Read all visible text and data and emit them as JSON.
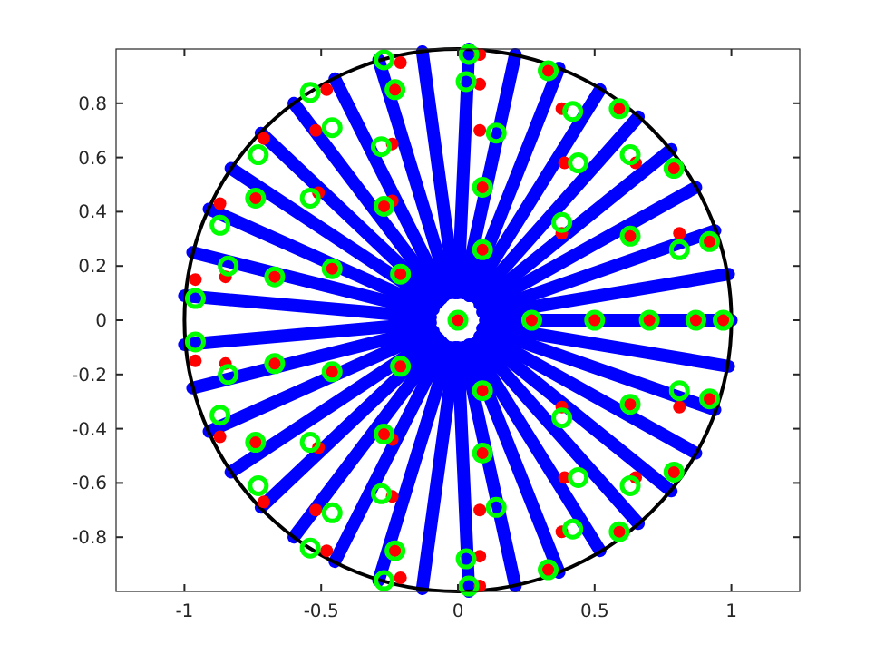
{
  "chart_data": {
    "type": "scatter",
    "xlim": [
      -1.25,
      1.25
    ],
    "ylim": [
      -1,
      1
    ],
    "xticks": [
      -1,
      -0.5,
      0,
      0.5,
      1
    ],
    "yticks": [
      -0.8,
      -0.6,
      -0.4,
      -0.2,
      0,
      0.2,
      0.4,
      0.6,
      0.8
    ],
    "grid": false,
    "series": [
      {
        "type": "line",
        "color": "#0000ff",
        "x": [
          0.1,
          1
        ],
        "values": [
          0,
          0
        ]
      },
      {
        "type": "line",
        "color": "#0000ff",
        "x": [
          0.1,
          0.99
        ],
        "values": [
          0.02,
          0.17
        ]
      },
      {
        "type": "line",
        "color": "#0000ff",
        "x": [
          0.09,
          0.94
        ],
        "values": [
          0.03,
          0.33
        ]
      },
      {
        "type": "line",
        "color": "#0000ff",
        "x": [
          0.09,
          0.87
        ],
        "values": [
          0.05,
          0.49
        ]
      },
      {
        "type": "line",
        "color": "#0000ff",
        "x": [
          0.08,
          0.78
        ],
        "values": [
          0.06,
          0.63
        ]
      },
      {
        "type": "line",
        "color": "#0000ff",
        "x": [
          0.07,
          0.66
        ],
        "values": [
          0.08,
          0.75
        ]
      },
      {
        "type": "line",
        "color": "#0000ff",
        "x": [
          0.05,
          0.52
        ],
        "values": [
          0.09,
          0.85
        ]
      },
      {
        "type": "line",
        "color": "#0000ff",
        "x": [
          0.04,
          0.37
        ],
        "values": [
          0.09,
          0.93
        ]
      },
      {
        "type": "line",
        "color": "#0000ff",
        "x": [
          0.02,
          0.21
        ],
        "values": [
          0.1,
          0.98
        ]
      },
      {
        "type": "line",
        "color": "#0000ff",
        "x": [
          0,
          0.04
        ],
        "values": [
          0.1,
          1
        ]
      },
      {
        "type": "line",
        "color": "#0000ff",
        "x": [
          -0.01,
          -0.13
        ],
        "values": [
          0.1,
          0.99
        ]
      },
      {
        "type": "line",
        "color": "#0000ff",
        "x": [
          -0.03,
          -0.29
        ],
        "values": [
          0.1,
          0.96
        ]
      },
      {
        "type": "line",
        "color": "#0000ff",
        "x": [
          -0.05,
          -0.45
        ],
        "values": [
          0.09,
          0.89
        ]
      },
      {
        "type": "line",
        "color": "#0000ff",
        "x": [
          -0.06,
          -0.6
        ],
        "values": [
          0.08,
          0.8
        ]
      },
      {
        "type": "line",
        "color": "#0000ff",
        "x": [
          -0.07,
          -0.72
        ],
        "values": [
          0.07,
          0.69
        ]
      },
      {
        "type": "line",
        "color": "#0000ff",
        "x": [
          -0.08,
          -0.83
        ],
        "values": [
          0.06,
          0.56
        ]
      },
      {
        "type": "line",
        "color": "#0000ff",
        "x": [
          -0.09,
          -0.91
        ],
        "values": [
          0.04,
          0.41
        ]
      },
      {
        "type": "line",
        "color": "#0000ff",
        "x": [
          -0.1,
          -0.97
        ],
        "values": [
          0.03,
          0.25
        ]
      },
      {
        "type": "line",
        "color": "#0000ff",
        "x": [
          -0.1,
          -1
        ],
        "values": [
          0.01,
          0.09
        ]
      },
      {
        "type": "line",
        "color": "#0000ff",
        "x": [
          -0.1,
          -1
        ],
        "values": [
          -0.01,
          -0.09
        ]
      },
      {
        "type": "line",
        "color": "#0000ff",
        "x": [
          -0.1,
          -0.97
        ],
        "values": [
          -0.03,
          -0.25
        ]
      },
      {
        "type": "line",
        "color": "#0000ff",
        "x": [
          -0.09,
          -0.91
        ],
        "values": [
          -0.04,
          -0.41
        ]
      },
      {
        "type": "line",
        "color": "#0000ff",
        "x": [
          -0.08,
          -0.83
        ],
        "values": [
          -0.06,
          -0.56
        ]
      },
      {
        "type": "line",
        "color": "#0000ff",
        "x": [
          -0.07,
          -0.72
        ],
        "values": [
          -0.07,
          -0.69
        ]
      },
      {
        "type": "line",
        "color": "#0000ff",
        "x": [
          -0.06,
          -0.6
        ],
        "values": [
          -0.08,
          -0.8
        ]
      },
      {
        "type": "line",
        "color": "#0000ff",
        "x": [
          -0.05,
          -0.45
        ],
        "values": [
          -0.09,
          -0.89
        ]
      },
      {
        "type": "line",
        "color": "#0000ff",
        "x": [
          -0.03,
          -0.29
        ],
        "values": [
          -0.1,
          -0.96
        ]
      },
      {
        "type": "line",
        "color": "#0000ff",
        "x": [
          -0.01,
          -0.13
        ],
        "values": [
          -0.1,
          -0.99
        ]
      },
      {
        "type": "line",
        "color": "#0000ff",
        "x": [
          0,
          0.04
        ],
        "values": [
          -0.1,
          -1
        ]
      },
      {
        "type": "line",
        "color": "#0000ff",
        "x": [
          0.02,
          0.21
        ],
        "values": [
          -0.1,
          -0.98
        ]
      },
      {
        "type": "line",
        "color": "#0000ff",
        "x": [
          0.04,
          0.37
        ],
        "values": [
          -0.09,
          -0.93
        ]
      },
      {
        "type": "line",
        "color": "#0000ff",
        "x": [
          0.05,
          0.52
        ],
        "values": [
          -0.09,
          -0.85
        ]
      },
      {
        "type": "line",
        "color": "#0000ff",
        "x": [
          0.07,
          0.66
        ],
        "values": [
          -0.08,
          -0.75
        ]
      },
      {
        "type": "line",
        "color": "#0000ff",
        "x": [
          0.08,
          0.78
        ],
        "values": [
          -0.06,
          -0.63
        ]
      },
      {
        "type": "line",
        "color": "#0000ff",
        "x": [
          0.09,
          0.87
        ],
        "values": [
          -0.05,
          -0.49
        ]
      },
      {
        "type": "line",
        "color": "#0000ff",
        "x": [
          0.09,
          0.94
        ],
        "values": [
          -0.03,
          -0.33
        ]
      },
      {
        "type": "line",
        "color": "#0000ff",
        "x": [
          0.1,
          0.99
        ],
        "values": [
          -0.02,
          -0.17
        ]
      },
      {
        "color": "#ff0000",
        "marker": "circle",
        "x": [
          -0.21,
          -0.23,
          -0.48,
          -0.52,
          -0.24,
          -0.71,
          -0.74,
          -0.51,
          -0.27,
          -0.24,
          -0.87,
          -0.85,
          -0.96,
          -0.67,
          -0.46,
          -0.21,
          0.08,
          0.08,
          0.33,
          0.38,
          0.59,
          0.08,
          0.39,
          0.65,
          0.79,
          0.09,
          0.38,
          0.63,
          0.81,
          0.92,
          0.09,
          -0.21,
          -0.23,
          -0.48,
          -0.52,
          -0.24,
          -0.71,
          -0.74,
          -0.51,
          -0.27,
          -0.24,
          -0.87,
          -0.85,
          -0.96,
          -0.67,
          -0.46,
          -0.21,
          0.08,
          0.08,
          0.33,
          0.38,
          0.59,
          0.08,
          0.39,
          0.65,
          0.79,
          0.09,
          0.38,
          0.63,
          0.81,
          0.92,
          0.09,
          0,
          0.27,
          0.5,
          0.7,
          0.87,
          0.97
        ],
        "values": [
          0.95,
          0.85,
          0.85,
          0.7,
          0.65,
          0.67,
          0.45,
          0.47,
          0.42,
          0.44,
          0.43,
          0.16,
          0.15,
          0.16,
          0.19,
          0.17,
          0.98,
          0.87,
          0.92,
          0.78,
          0.78,
          0.7,
          0.58,
          0.58,
          0.56,
          0.49,
          0.32,
          0.31,
          0.32,
          0.29,
          0.26,
          -0.95,
          -0.85,
          -0.85,
          -0.7,
          -0.65,
          -0.67,
          -0.45,
          -0.47,
          -0.42,
          -0.44,
          -0.43,
          -0.16,
          -0.15,
          -0.16,
          -0.19,
          -0.17,
          -0.98,
          -0.87,
          -0.92,
          -0.78,
          -0.78,
          -0.7,
          -0.58,
          -0.58,
          -0.56,
          -0.49,
          -0.32,
          -0.31,
          -0.32,
          -0.29,
          -0.26,
          0,
          0,
          0,
          0,
          0,
          0
        ]
      },
      {
        "color": "#00ff00",
        "marker": "circle",
        "x": [
          -0.27,
          -0.23,
          -0.54,
          -0.46,
          -0.28,
          -0.73,
          -0.74,
          -0.54,
          -0.27,
          -0.87,
          -0.84,
          -0.67,
          -0.46,
          -0.21,
          -0.96,
          0.04,
          0.03,
          0.33,
          0.42,
          0.59,
          0.14,
          0.44,
          0.63,
          0.79,
          0.09,
          0.38,
          0.63,
          0.81,
          0.92,
          0.09,
          -0.27,
          -0.23,
          -0.54,
          -0.46,
          -0.28,
          -0.73,
          -0.74,
          -0.54,
          -0.27,
          -0.87,
          -0.84,
          -0.67,
          -0.46,
          -0.21,
          -0.96,
          0.04,
          0.03,
          0.33,
          0.42,
          0.59,
          0.14,
          0.44,
          0.63,
          0.79,
          0.09,
          0.38,
          0.63,
          0.81,
          0.92,
          0.09,
          0,
          0.27,
          0.5,
          0.7,
          0.87,
          0.97
        ],
        "values": [
          0.96,
          0.85,
          0.84,
          0.71,
          0.64,
          0.61,
          0.45,
          0.45,
          0.42,
          0.35,
          0.2,
          0.16,
          0.19,
          0.17,
          0.08,
          0.98,
          0.88,
          0.92,
          0.77,
          0.78,
          0.69,
          0.58,
          0.61,
          0.56,
          0.49,
          0.36,
          0.31,
          0.26,
          0.29,
          0.26,
          -0.96,
          -0.85,
          -0.84,
          -0.71,
          -0.64,
          -0.61,
          -0.45,
          -0.45,
          -0.42,
          -0.35,
          -0.2,
          -0.16,
          -0.19,
          -0.17,
          -0.08,
          -0.98,
          -0.88,
          -0.92,
          -0.77,
          -0.78,
          -0.69,
          -0.58,
          -0.61,
          -0.56,
          -0.49,
          -0.36,
          -0.31,
          -0.26,
          -0.29,
          -0.26,
          0,
          0,
          0,
          0,
          0,
          0
        ]
      }
    ]
  }
}
